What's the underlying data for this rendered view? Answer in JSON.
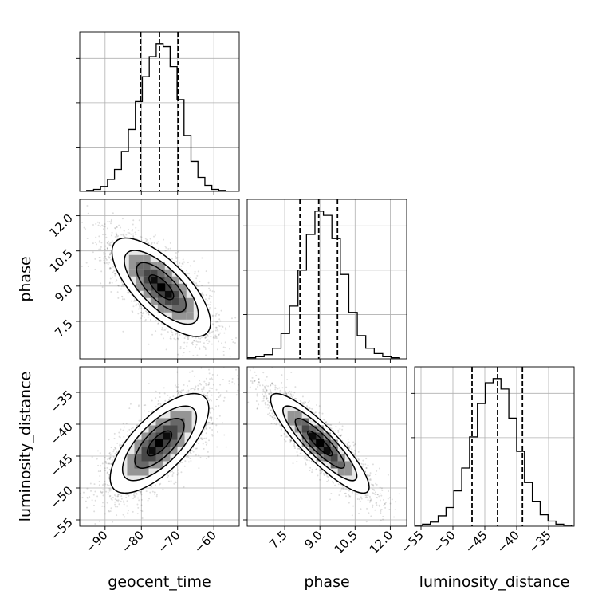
{
  "chart_data": {
    "type": "corner",
    "parameters": [
      {
        "name": "geocent_time",
        "range": [
          -97,
          -53
        ],
        "ticks": [
          -90,
          -80,
          -70,
          -60
        ],
        "tick_labels": [
          "−90",
          "−80",
          "−70",
          "−60"
        ],
        "quantiles": [
          -80.2,
          -75.0,
          -69.9
        ],
        "hist_edges": [
          -97,
          -54.8
        ],
        "hist_counts": [
          0,
          1,
          2,
          5,
          12,
          22,
          40,
          62,
          90,
          115,
          135,
          148,
          145,
          125,
          92,
          56,
          30,
          14,
          6,
          2,
          1,
          0
        ]
      },
      {
        "name": "phase",
        "range": [
          5.9,
          12.7
        ],
        "ticks": [
          7.5,
          9.0,
          10.5,
          12.0
        ],
        "tick_labels": [
          "7.5",
          "9.0",
          "10.5",
          "12.0"
        ],
        "quantiles": [
          8.15,
          8.95,
          9.75
        ],
        "hist_edges": [
          5.9,
          12.4
        ],
        "hist_counts": [
          1,
          2,
          4,
          10,
          24,
          50,
          84,
          118,
          140,
          136,
          114,
          80,
          44,
          22,
          10,
          5,
          2,
          1
        ]
      },
      {
        "name": "luminosity_distance",
        "range": [
          -56,
          -31
        ],
        "ticks": [
          -55,
          -50,
          -45,
          -40,
          -35
        ],
        "tick_labels": [
          "−55",
          "−50",
          "−45",
          "−40",
          "−35"
        ],
        "quantiles": [
          -47.0,
          -43.0,
          -39.1
        ],
        "hist_edges": [
          -56,
          -31.4
        ],
        "hist_counts": [
          1,
          2,
          4,
          10,
          18,
          34,
          56,
          86,
          118,
          138,
          142,
          132,
          104,
          72,
          42,
          24,
          11,
          5,
          2,
          1
        ]
      }
    ],
    "pairs": [
      {
        "x_param": "geocent_time",
        "y_param": "phase",
        "mean": [
          -74.5,
          8.95
        ],
        "sd": [
          6.8,
          1.05
        ],
        "corr": -0.72
      },
      {
        "x_param": "geocent_time",
        "y_param": "luminosity_distance",
        "mean": [
          -75.0,
          -43.0
        ],
        "sd": [
          6.8,
          3.9
        ],
        "corr": 0.7
      },
      {
        "x_param": "phase",
        "y_param": "luminosity_distance",
        "mean": [
          9.0,
          -43.0
        ],
        "sd": [
          1.05,
          3.9
        ],
        "corr": -0.88
      }
    ],
    "contour_sigma_levels": [
      0.5,
      1.0,
      1.5,
      2.0
    ],
    "grid": true
  }
}
